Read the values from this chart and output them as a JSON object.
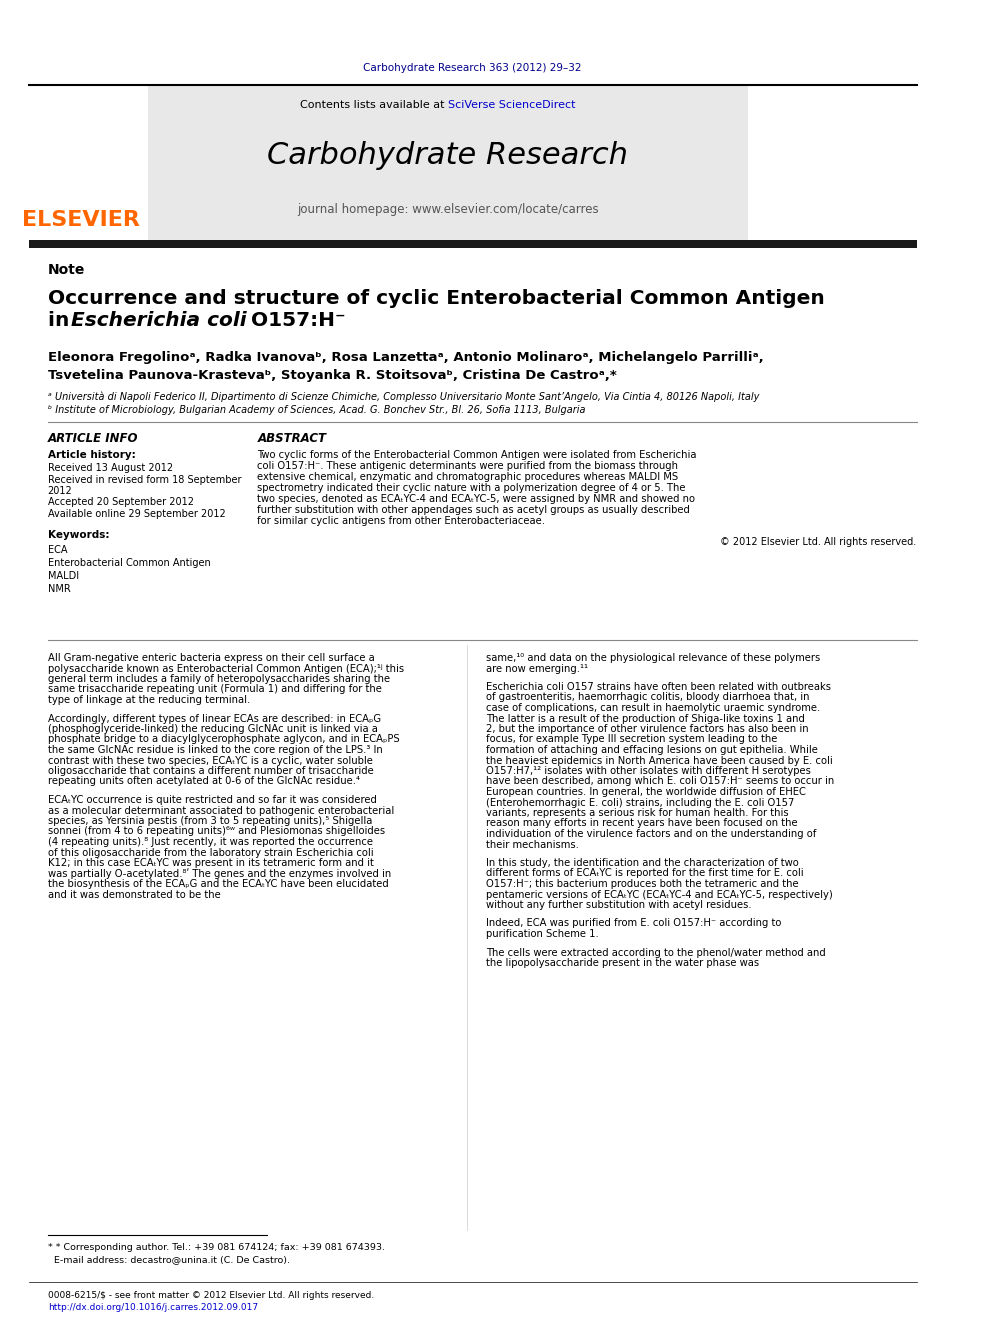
{
  "page_bg": "#ffffff",
  "top_citation": "Carbohydrate Research 363 (2012) 29–32",
  "top_citation_color": "#00008B",
  "journal_title": "Carbohydrate Research",
  "journal_homepage": "journal homepage: www.elsevier.com/locate/carres",
  "contents_text": "Contents lists available at ",
  "sciverse_text": "SciVerse ScienceDirect",
  "note_label": "Note",
  "paper_title_line1": "Occurrence and structure of cyclic Enterobacterial Common Antigen",
  "paper_title_line2": "in ",
  "paper_title_italic": "Escherichia coli",
  "paper_title_end": " O157:H⁻",
  "authors": "Eleonora Fregolinoᵃ, Radka Ivanovaᵇ, Rosa Lanzettaᵃ, Antonio Molinaroᵃ, Michelangelo Parrilliᵃ,",
  "authors2": "Tsvetelina Paunova-Krastevaᵇ, Stoyanka R. Stoitsovaᵇ, Cristina De Castroᵃ,*",
  "affil_a": "ᵃ Università di Napoli Federico II, Dipartimento di Scienze Chimiche, Complesso Universitario Monte Sant’Angelo, Via Cintia 4, 80126 Napoli, Italy",
  "affil_b": "ᵇ Institute of Microbiology, Bulgarian Academy of Sciences, Acad. G. Bonchev Str., Bl. 26, Sofia 1113, Bulgaria",
  "article_info_title": "ARTICLE INFO",
  "article_history_title": "Article history:",
  "received1": "Received 13 August 2012",
  "received2": "Received in revised form 18 September",
  "received2b": "2012",
  "accepted": "Accepted 20 September 2012",
  "available": "Available online 29 September 2012",
  "keywords_title": "Keywords:",
  "keywords": [
    "ECA",
    "Enterobacterial Common Antigen",
    "MALDI",
    "NMR"
  ],
  "abstract_title": "ABSTRACT",
  "abstract_text": "Two cyclic forms of the Enterobacterial Common Antigen were isolated from Escherichia coli O157:H⁻. These antigenic determinants were purified from the biomass through extensive chemical, enzymatic and chromatographic procedures whereas MALDI MS spectrometry indicated their cyclic nature with a polymerization degree of 4 or 5. The two species, denoted as ECAₜYC-4 and ECAₜYC-5, were assigned by NMR and showed no further substitution with other appendages such as acetyl groups as usually described for similar cyclic antigens from other Enterobacteriaceae.",
  "copyright": "© 2012 Elsevier Ltd. All rights reserved.",
  "body_col1_para1": "All Gram-negative enteric bacteria express on their cell surface a polysaccharide known as Enterobacterial Common Antigen (ECA);¹ʲ this general term includes a family of heteropolysaccharides sharing the same trisaccharide repeating unit (Formula 1) and differing for the type of linkage at the reducing terminal.",
  "body_col1_para2": "Accordingly, different types of linear ECAs are described: in ECAₚG (phosphoglyceride-linked) the reducing GlcNAc unit is linked via a phosphate bridge to a diacylglycerophosphate aglycon, and in ECAₚPS the same GlcNAc residue is linked to the core region of the LPS.³ In contrast with these two species, ECAₜYC is a cyclic, water soluble oligosaccharide that contains a different number of trisaccharide repeating units often acetylated at 0-6 of the GlcNAc residue.⁴",
  "body_col1_para3": "ECAₜYC occurrence is quite restricted and so far it was considered as a molecular determinant associated to pathogenic enterobacterial species, as Yersinia pestis (from 3 to 5 repeating units),⁵ Shigella sonnei (from 4 to 6 repeating units)⁶ʷ and Plesiomonas shigelloides (4 repeating units).⁸ Just recently, it was reported the occurrence of this oligosaccharide from the laboratory strain Escherichia coli K12; in this case ECAₜYC was present in its tetrameric form and it was partially O-acetylated.⁸ʹ The genes and the enzymes involved in the biosynthesis of the ECAₚG and the ECAₜYC have been elucidated and it was demonstrated to be the",
  "body_col2_para1": "same,¹⁰ and data on the physiological relevance of these polymers are now emerging.¹¹",
  "body_col2_para2": "Escherichia coli O157 strains have often been related with outbreaks of gastroenteritis, haemorrhagic colitis, bloody diarrhoea that, in case of complications, can result in haemolytic uraemic syndrome. The latter is a result of the production of Shiga-like toxins 1 and 2, but the importance of other virulence factors has also been in focus, for example Type III secretion system leading to the formation of attaching and effacing lesions on gut epithelia. While the heaviest epidemics in North America have been caused by E. coli O157:H7,¹² isolates with other isolates with different H serotypes have been described, among which E. coli O157:H⁻ seems to occur in European countries. In general, the worldwide diffusion of EHEC (Enterohemorrhagic E. coli) strains, including the E. coli O157 variants, represents a serious risk for human health. For this reason many efforts in recent years have been focused on the individuation of the virulence factors and on the understanding of their mechanisms.",
  "body_col2_para3": "In this study, the identification and the characterization of two different forms of ECAₜYC is reported for the first time for E. coli O157:H⁻; this bacterium produces both the tetrameric and the pentameric versions of ECAₜYC (ECAₜYC-4 and ECAₜYC-5, respectively) without any further substitution with acetyl residues.",
  "body_col2_para4": "Indeed, ECA was purified from E. coli O157:H⁻ according to purification Scheme 1.",
  "body_col2_para5": "The cells were extracted according to the phenol/water method and the lipopolysaccharide present in the water phase was",
  "footnote1": "* Corresponding author. Tel.: +39 081 674124; fax: +39 081 674393.",
  "footnote2": "E-mail address: decastro@unina.it (C. De Castro).",
  "footer1": "0008-6215/$ - see front matter © 2012 Elsevier Ltd. All rights reserved.",
  "footer2": "http://dx.doi.org/10.1016/j.carres.2012.09.017",
  "elsevier_color": "#FF6600",
  "link_color": "#0000CD",
  "header_bg": "#e8e8e8",
  "dark_bar_color": "#1a1a1a"
}
